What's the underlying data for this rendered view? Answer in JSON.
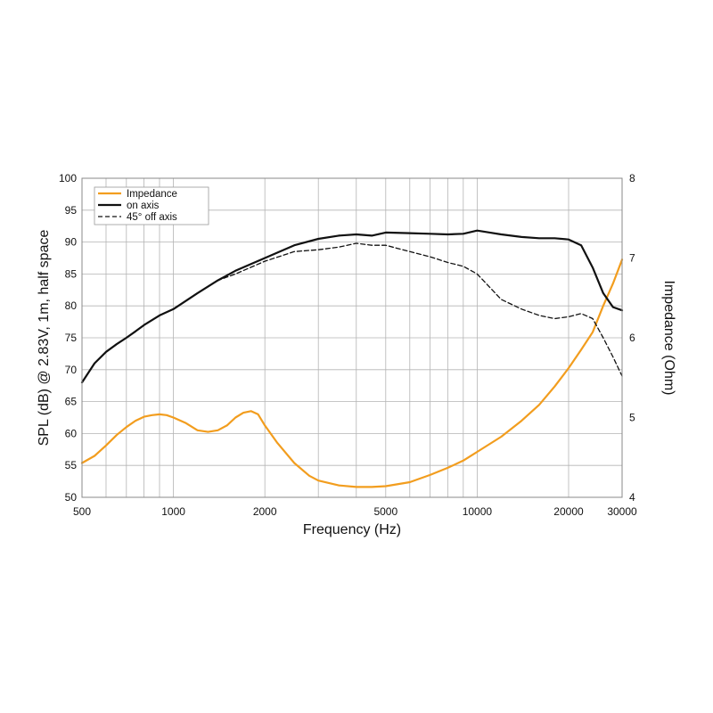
{
  "chart_data": {
    "type": "line",
    "xscale": "log",
    "xlabel": "Frequency (Hz)",
    "ylabel": "SPL (dB)  @ 2.83V, 1m, half space",
    "y2label": "Impedance (Ohm)",
    "xlim": [
      500,
      30000
    ],
    "ylim": [
      50,
      100
    ],
    "y2lim": [
      4,
      8
    ],
    "x_ticks": [
      500,
      1000,
      2000,
      5000,
      10000,
      20000,
      30000
    ],
    "x_tick_labels": [
      "500",
      "1000",
      "2000",
      "5000",
      "10000",
      "20000",
      "30000"
    ],
    "x_minor_grid": [
      600,
      700,
      800,
      900,
      3000,
      4000,
      6000,
      7000,
      8000,
      9000
    ],
    "y_ticks": [
      50,
      55,
      60,
      65,
      70,
      75,
      80,
      85,
      90,
      95,
      100
    ],
    "y_tick_labels": [
      "50",
      "55",
      "60",
      "65",
      "70",
      "75",
      "80",
      "85",
      "90",
      "95",
      "100"
    ],
    "y2_ticks": [
      4,
      5,
      6,
      7,
      8
    ],
    "y2_tick_labels": [
      "4",
      "5",
      "6",
      "7",
      "8"
    ],
    "grid": true,
    "legend_position": "top-left",
    "colors": {
      "impedance": "#f29d1e",
      "on_axis": "#111111",
      "off_axis": "#111111",
      "grid": "#b4b4b4",
      "frame": "#888888"
    },
    "series": [
      {
        "name": "Impedance",
        "axis": "right",
        "style": "solid",
        "x": [
          500,
          550,
          600,
          650,
          700,
          750,
          800,
          850,
          900,
          950,
          1000,
          1100,
          1200,
          1300,
          1400,
          1500,
          1600,
          1700,
          1800,
          1900,
          2000,
          2200,
          2500,
          2800,
          3000,
          3500,
          4000,
          4500,
          5000,
          6000,
          7000,
          8000,
          9000,
          10000,
          12000,
          14000,
          16000,
          18000,
          20000,
          22000,
          24000,
          26000,
          28000,
          30000
        ],
        "values": [
          4.43,
          4.52,
          4.65,
          4.78,
          4.88,
          4.96,
          5.01,
          5.03,
          5.04,
          5.03,
          5.0,
          4.93,
          4.84,
          4.82,
          4.84,
          4.9,
          5.0,
          5.06,
          5.08,
          5.04,
          4.9,
          4.68,
          4.43,
          4.27,
          4.21,
          4.15,
          4.13,
          4.13,
          4.14,
          4.19,
          4.28,
          4.37,
          4.46,
          4.57,
          4.76,
          4.96,
          5.16,
          5.39,
          5.62,
          5.85,
          6.07,
          6.4,
          6.68,
          6.98
        ]
      },
      {
        "name": "on axis",
        "axis": "left",
        "style": "solid",
        "x": [
          500,
          550,
          600,
          650,
          700,
          750,
          800,
          900,
          1000,
          1200,
          1400,
          1600,
          2000,
          2500,
          3000,
          3500,
          4000,
          4500,
          5000,
          6000,
          7000,
          8000,
          9000,
          10000,
          11000,
          12000,
          14000,
          16000,
          18000,
          20000,
          22000,
          24000,
          26000,
          28000,
          30000
        ],
        "values": [
          68,
          71,
          72.8,
          74,
          75,
          76,
          77,
          78.5,
          79.5,
          82,
          84,
          85.5,
          87.5,
          89.5,
          90.5,
          91,
          91.2,
          91,
          91.5,
          91.4,
          91.3,
          91.2,
          91.3,
          91.8,
          91.5,
          91.2,
          90.8,
          90.6,
          90.6,
          90.4,
          89.5,
          86,
          82,
          79.8,
          79.3
        ]
      },
      {
        "name": "45° off axis",
        "axis": "left",
        "style": "dashed",
        "x": [
          500,
          550,
          600,
          650,
          700,
          750,
          800,
          900,
          1000,
          1200,
          1400,
          1600,
          2000,
          2500,
          3000,
          3500,
          4000,
          4500,
          5000,
          6000,
          7000,
          8000,
          9000,
          10000,
          12000,
          14000,
          16000,
          18000,
          20000,
          22000,
          24000,
          26000,
          28000,
          30000
        ],
        "values": [
          68,
          71,
          72.8,
          74,
          75,
          76,
          77,
          78.5,
          79.5,
          82,
          84,
          85,
          87,
          88.5,
          88.8,
          89.2,
          89.8,
          89.5,
          89.5,
          88.5,
          87.7,
          86.8,
          86.2,
          85,
          81,
          79.5,
          78.5,
          78,
          78.3,
          78.8,
          78,
          75,
          72,
          69
        ]
      }
    ]
  }
}
